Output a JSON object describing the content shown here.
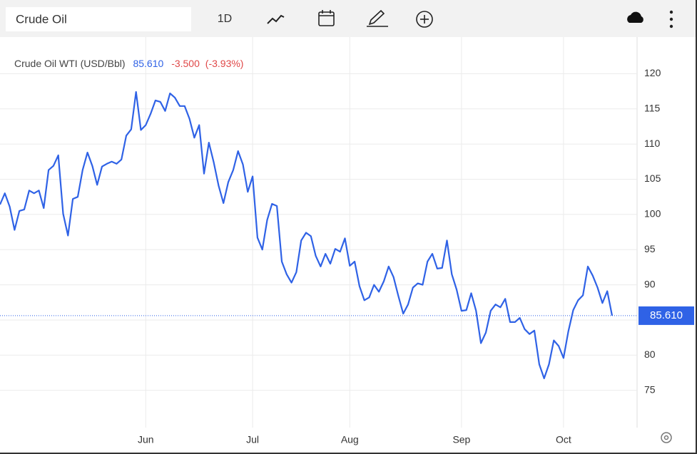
{
  "toolbar": {
    "search": "Crude Oil",
    "interval": "1D"
  },
  "chart_data": {
    "type": "line",
    "title": "Crude Oil WTI (USD/Bbl)",
    "last": {
      "value": 85.61,
      "label": "85.610"
    },
    "change": {
      "value": -3.5,
      "label": "-3.500"
    },
    "change_percent": {
      "value": -3.93,
      "label": "(-3.93%)"
    },
    "color": "#2f62e6",
    "categories": [
      null,
      null,
      null,
      null,
      null,
      null,
      null,
      null,
      null,
      null,
      null,
      null,
      null,
      null,
      null,
      null,
      null,
      null,
      null,
      null,
      null,
      null,
      null,
      null,
      null,
      null,
      null,
      null,
      null,
      null,
      "Jun",
      null,
      null,
      null,
      null,
      null,
      null,
      null,
      null,
      null,
      null,
      null,
      null,
      null,
      null,
      null,
      null,
      null,
      null,
      null,
      null,
      null,
      "Jul",
      null,
      null,
      null,
      null,
      null,
      null,
      null,
      null,
      null,
      null,
      null,
      null,
      null,
      null,
      null,
      null,
      null,
      null,
      null,
      "Aug",
      null,
      null,
      null,
      null,
      null,
      null,
      null,
      null,
      null,
      null,
      null,
      null,
      null,
      null,
      null,
      null,
      null,
      null,
      null,
      null,
      null,
      null,
      "Sep",
      null,
      null,
      null,
      null,
      null,
      null,
      null,
      null,
      null,
      null,
      null,
      null,
      null,
      null,
      null,
      null,
      null,
      null,
      null,
      null,
      "Oct",
      null,
      null,
      null,
      null,
      null,
      null,
      null,
      null,
      null,
      null
    ],
    "values": [
      101.4,
      103.0,
      101.1,
      97.8,
      100.5,
      100.7,
      103.4,
      103.0,
      103.4,
      100.9,
      106.3,
      106.9,
      108.4,
      100.1,
      97.0,
      102.2,
      102.5,
      106.3,
      108.8,
      106.9,
      104.2,
      106.8,
      107.2,
      107.5,
      107.2,
      107.8,
      111.2,
      112.1,
      117.4,
      112.0,
      112.7,
      114.3,
      116.2,
      116.0,
      114.7,
      117.2,
      116.6,
      115.4,
      115.4,
      113.6,
      110.9,
      112.7,
      105.8,
      110.2,
      107.4,
      104.1,
      101.6,
      104.6,
      106.3,
      109.0,
      107.1,
      103.2,
      105.4,
      96.7,
      95.0,
      99.2,
      101.5,
      101.2,
      93.3,
      91.5,
      90.3,
      91.8,
      96.3,
      97.4,
      96.9,
      94.1,
      92.6,
      94.4,
      93.0,
      95.1,
      94.7,
      96.6,
      92.7,
      93.3,
      89.8,
      87.8,
      88.2,
      90.0,
      89.0,
      90.5,
      92.6,
      91.1,
      88.4,
      85.9,
      87.2,
      89.6,
      90.2,
      90.0,
      93.3,
      94.4,
      92.3,
      92.4,
      96.3,
      91.5,
      89.3,
      86.3,
      86.4,
      88.8,
      86.3,
      81.7,
      83.2,
      86.3,
      87.2,
      86.8,
      88.0,
      84.7,
      84.7,
      85.3,
      83.7,
      83.0,
      83.5,
      78.7,
      76.7,
      78.7,
      82.1,
      81.3,
      79.6,
      83.4,
      86.4,
      87.8,
      88.5,
      92.6,
      91.3,
      89.6,
      87.4,
      89.1,
      85.61
    ],
    "ylim": [
      69.7,
      124.9
    ],
    "yticks": [
      75,
      80,
      85,
      90,
      95,
      100,
      105,
      110,
      115,
      120
    ],
    "grid": true
  }
}
